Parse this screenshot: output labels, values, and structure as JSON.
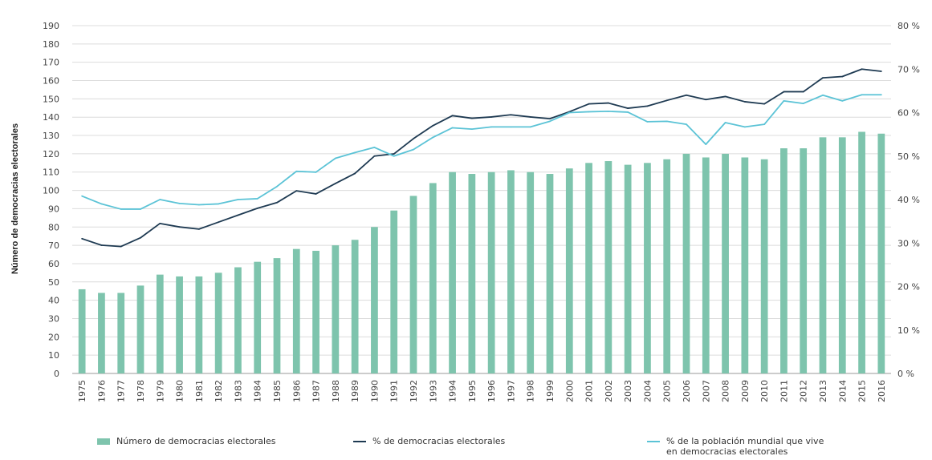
{
  "chart_data": {
    "type": "bar",
    "title": "",
    "xlabel": "",
    "ylabel": "Número de democracias electorales",
    "ylim": [
      0,
      190
    ],
    "y2lim": [
      0,
      80
    ],
    "y_ticks": [
      "0",
      "10",
      "20",
      "30",
      "40",
      "50",
      "60",
      "70",
      "80",
      "90",
      "100",
      "110",
      "120",
      "130",
      "140",
      "150",
      "160",
      "170",
      "180",
      "190"
    ],
    "y2_ticks": [
      "0 %",
      "10 %",
      "20 %",
      "30 %",
      "40 %",
      "50 %",
      "60 %",
      "70 %",
      "80 %"
    ],
    "grid": true,
    "legend_position": "bottom",
    "categories": [
      "1975",
      "1976",
      "1977",
      "1978",
      "1979",
      "1980",
      "1981",
      "1982",
      "1983",
      "1984",
      "1985",
      "1986",
      "1987",
      "1988",
      "1989",
      "1990",
      "1991",
      "1992",
      "1993",
      "1994",
      "1995",
      "1996",
      "1997",
      "1998",
      "1999",
      "2000",
      "2001",
      "2002",
      "2003",
      "2004",
      "2005",
      "2006",
      "2007",
      "2008",
      "2009",
      "2010",
      "2011",
      "2012",
      "2013",
      "2014",
      "2015",
      "2016"
    ],
    "series": [
      {
        "name": "Número de democracias electorales",
        "kind": "bar",
        "axis": "left",
        "color": "#7ec4ad",
        "values": [
          46,
          44,
          44,
          48,
          54,
          53,
          53,
          55,
          58,
          61,
          63,
          68,
          67,
          70,
          73,
          80,
          89,
          97,
          104,
          110,
          109,
          110,
          111,
          110,
          109,
          112,
          115,
          116,
          114,
          115,
          117,
          120,
          118,
          120,
          118,
          117,
          123,
          123,
          129,
          129,
          132,
          131
        ]
      },
      {
        "name": "% de democracias electorales",
        "kind": "line",
        "axis": "right",
        "color": "#1e3a52",
        "values": [
          31,
          29.5,
          29.2,
          31.2,
          34.5,
          33.7,
          33.2,
          34.8,
          36.4,
          38,
          39.3,
          42,
          41.3,
          43.7,
          46,
          50,
          50.5,
          54,
          57,
          59.3,
          58.7,
          59,
          59.5,
          59,
          58.6,
          60.2,
          62,
          62.2,
          61,
          61.5,
          62.8,
          64,
          63,
          63.7,
          62.5,
          62,
          64.8,
          64.8,
          68,
          68.3,
          70,
          69.5
        ]
      },
      {
        "name": "% de la población mundial que vive en democracias electorales",
        "kind": "line",
        "axis": "right",
        "color": "#5bc3d6",
        "values": [
          40.8,
          39,
          37.8,
          37.8,
          40,
          39.1,
          38.8,
          39,
          40,
          40.2,
          43,
          46.5,
          46.3,
          49.5,
          50.8,
          52,
          50,
          51.5,
          54.3,
          56.5,
          56.2,
          56.7,
          56.7,
          56.7,
          58,
          60,
          60.2,
          60.3,
          60.1,
          57.9,
          58,
          57.3,
          52.7,
          57.7,
          56.7,
          57.3,
          62.7,
          62.1,
          64,
          62.7,
          64.1,
          64.1
        ]
      }
    ]
  },
  "legend": {
    "bar_label": "Número de democracias electorales",
    "line1_label": "% de democracias electorales",
    "line2_label_l1": "% de la población mundial que vive",
    "line2_label_l2": "en democracias electorales"
  }
}
